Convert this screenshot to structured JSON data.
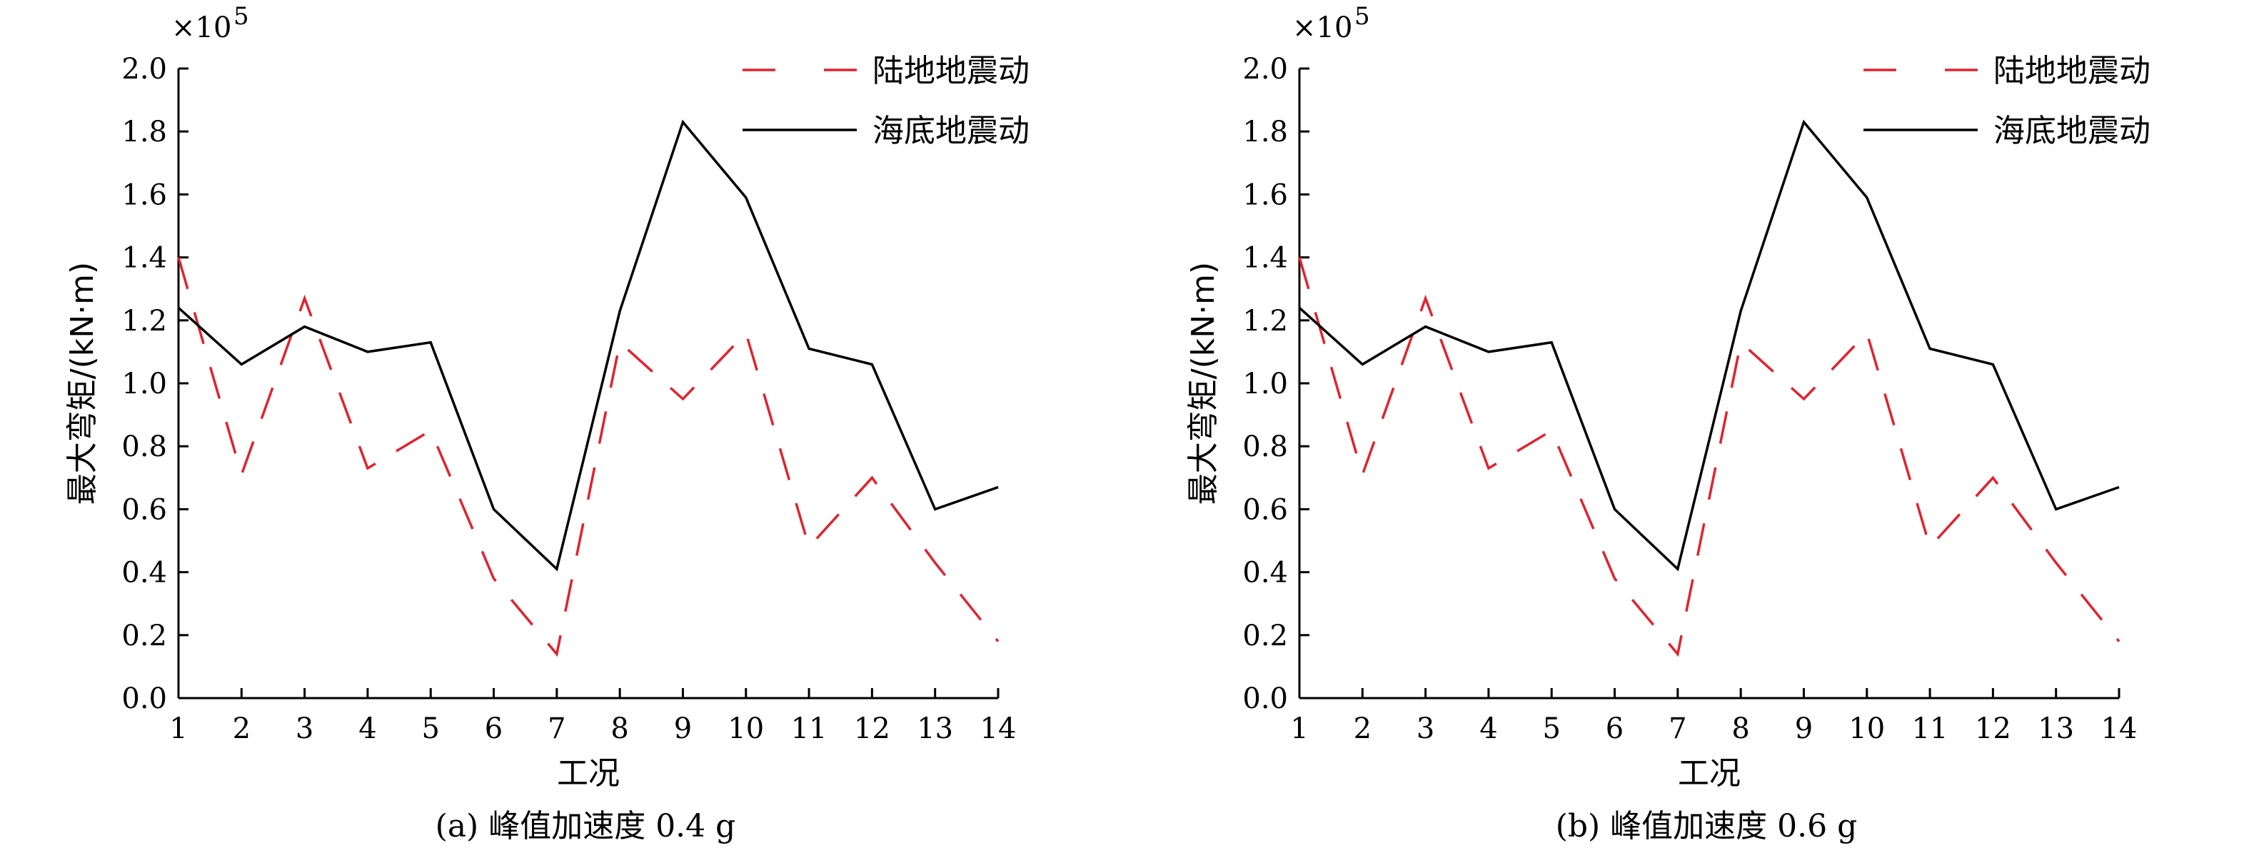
{
  "chart_data": [
    {
      "type": "line",
      "ylabel": "最大弯矩/(kN·m)",
      "xlabel": "工况",
      "caption": "(a) 峰值加速度 0.4 g",
      "y_multiplier": "×10",
      "y_multiplier_exp": "5",
      "x": [
        1,
        2,
        3,
        4,
        5,
        6,
        7,
        8,
        9,
        10,
        11,
        12,
        13,
        14
      ],
      "xlim": [
        1,
        14
      ],
      "ylim": [
        0.0,
        2.0
      ],
      "yticks": [
        "0.0",
        "0.2",
        "0.4",
        "0.6",
        "0.8",
        "1.0",
        "1.2",
        "1.4",
        "1.6",
        "1.8",
        "2.0"
      ],
      "grid": false,
      "legend_position": "top-right",
      "series": [
        {
          "name": "陆地地震动",
          "color": "#e0232e",
          "dash": "dashed",
          "values": [
            1.4,
            0.71,
            1.27,
            0.73,
            0.85,
            0.38,
            0.14,
            1.13,
            0.95,
            1.16,
            0.48,
            0.7,
            0.43,
            0.18
          ]
        },
        {
          "name": "海底地震动",
          "color": "#000000",
          "dash": "solid",
          "values": [
            1.24,
            1.06,
            1.18,
            1.1,
            1.13,
            0.6,
            0.41,
            1.23,
            1.83,
            1.59,
            1.11,
            1.06,
            0.6,
            0.67
          ]
        }
      ]
    },
    {
      "type": "line",
      "ylabel": "最大弯矩/(kN·m)",
      "xlabel": "工况",
      "caption": "(b) 峰值加速度 0.6 g",
      "y_multiplier": "×10",
      "y_multiplier_exp": "5",
      "x": [
        1,
        2,
        3,
        4,
        5,
        6,
        7,
        8,
        9,
        10,
        11,
        12,
        13,
        14
      ],
      "xlim": [
        1,
        14
      ],
      "ylim": [
        0.0,
        2.0
      ],
      "yticks": [
        "0.0",
        "0.2",
        "0.4",
        "0.6",
        "0.8",
        "1.0",
        "1.2",
        "1.4",
        "1.6",
        "1.8",
        "2.0"
      ],
      "grid": false,
      "legend_position": "top-right",
      "series": [
        {
          "name": "陆地地震动",
          "color": "#e0232e",
          "dash": "dashed",
          "values": [
            1.4,
            0.71,
            1.27,
            0.73,
            0.85,
            0.38,
            0.14,
            1.13,
            0.95,
            1.16,
            0.48,
            0.7,
            0.43,
            0.18
          ]
        },
        {
          "name": "海底地震动",
          "color": "#000000",
          "dash": "solid",
          "values": [
            1.24,
            1.06,
            1.18,
            1.1,
            1.13,
            0.6,
            0.41,
            1.23,
            1.83,
            1.59,
            1.11,
            1.06,
            0.6,
            0.67
          ]
        }
      ]
    }
  ]
}
